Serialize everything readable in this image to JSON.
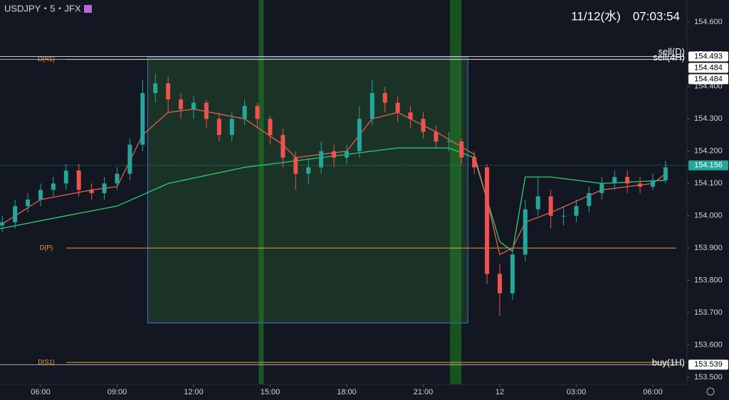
{
  "chart_data": {
    "type": "candlestick",
    "title": "USDJPY・5・JFX",
    "timestamp": "11/12(水)　07:03:54",
    "up_color": "#26a69a",
    "down_color": "#ef5350",
    "x": [
      -1.5,
      -1,
      -0.5,
      0,
      0.5,
      1,
      1.5,
      2,
      2.5,
      3,
      3.5,
      4,
      4.5,
      5,
      5.5,
      6,
      6.5,
      7,
      7.5,
      8,
      8.5,
      9,
      9.5,
      10,
      10.5,
      11,
      11.5,
      12,
      12.5,
      13,
      13.5,
      14,
      14.5,
      15,
      15.5,
      16,
      16.5,
      17,
      17.5,
      18,
      18.5,
      19,
      19.5,
      20,
      20.5,
      21,
      21.5,
      22,
      22.5,
      23,
      23.5,
      24,
      24.5
    ],
    "open": [
      153.97,
      153.98,
      154.03,
      154.05,
      154.08,
      154.1,
      154.14,
      154.08,
      154.07,
      154.1,
      154.13,
      154.22,
      154.38,
      154.41,
      154.36,
      154.33,
      154.35,
      154.3,
      154.25,
      154.3,
      154.34,
      154.3,
      154.25,
      154.18,
      154.13,
      154.15,
      154.2,
      154.18,
      154.2,
      154.3,
      154.38,
      154.35,
      154.32,
      154.3,
      154.26,
      154.23,
      154.23,
      154.18,
      154.15,
      153.82,
      153.76,
      153.88,
      154.02,
      154.06,
      154.0,
      154.0,
      154.03,
      154.07,
      154.1,
      154.12,
      154.1,
      154.09,
      154.11
    ],
    "high": [
      154.0,
      154.05,
      154.07,
      154.1,
      154.12,
      154.16,
      154.16,
      154.1,
      154.12,
      154.15,
      154.24,
      154.42,
      154.44,
      154.43,
      154.38,
      154.37,
      154.36,
      154.32,
      154.32,
      154.36,
      154.35,
      154.31,
      154.27,
      154.2,
      154.18,
      154.23,
      154.22,
      154.22,
      154.34,
      154.42,
      154.4,
      154.37,
      154.34,
      154.32,
      154.28,
      154.26,
      154.24,
      154.2,
      154.16,
      153.85,
      153.9,
      154.05,
      154.12,
      154.08,
      154.03,
      154.05,
      154.09,
      154.12,
      154.14,
      154.14,
      154.12,
      154.13,
      154.17
    ],
    "low": [
      153.95,
      153.96,
      154.01,
      154.03,
      154.06,
      154.08,
      154.06,
      154.05,
      154.05,
      154.08,
      154.11,
      154.2,
      154.35,
      154.32,
      154.3,
      154.3,
      154.27,
      154.23,
      154.23,
      154.28,
      154.27,
      154.22,
      154.15,
      154.08,
      154.1,
      154.13,
      154.15,
      154.16,
      154.18,
      154.28,
      154.32,
      154.29,
      154.27,
      154.24,
      154.21,
      154.2,
      154.16,
      154.13,
      153.79,
      153.69,
      153.74,
      153.86,
      154.0,
      153.96,
      153.97,
      153.98,
      154.01,
      154.05,
      154.08,
      154.07,
      154.07,
      154.08,
      154.1
    ],
    "close": [
      153.98,
      154.03,
      154.05,
      154.08,
      154.1,
      154.14,
      154.08,
      154.07,
      154.1,
      154.13,
      154.22,
      154.38,
      154.41,
      154.36,
      154.33,
      154.35,
      154.3,
      154.25,
      154.3,
      154.34,
      154.3,
      154.25,
      154.18,
      154.13,
      154.15,
      154.2,
      154.18,
      154.2,
      154.3,
      154.38,
      154.35,
      154.32,
      154.3,
      154.26,
      154.23,
      154.23,
      154.18,
      154.15,
      153.82,
      153.76,
      153.88,
      154.02,
      154.06,
      154.0,
      154.0,
      154.03,
      154.07,
      154.1,
      154.12,
      154.1,
      154.09,
      154.11,
      154.15
    ],
    "series": [
      {
        "color": "#2ecc71",
        "x": [
          -1.59,
          1,
          3,
          5,
          8,
          11,
          14,
          16,
          17,
          17.5,
          18,
          18.5,
          19,
          20,
          22,
          24.5
        ],
        "values": [
          153.96,
          154.0,
          154.03,
          154.1,
          154.15,
          154.18,
          154.21,
          154.21,
          154.18,
          154.05,
          153.92,
          153.89,
          154.12,
          154.12,
          154.1,
          154.11
        ]
      },
      {
        "color": "#e0604f",
        "x": [
          -1.59,
          0,
          2,
          3,
          4,
          5,
          6,
          8,
          9.5,
          10,
          11,
          12,
          13,
          14,
          15.5,
          17,
          17.5,
          18,
          18.5,
          19,
          20,
          22,
          24,
          24.5
        ],
        "values": [
          153.97,
          154.05,
          154.08,
          154.09,
          154.25,
          154.32,
          154.33,
          154.3,
          154.22,
          154.18,
          154.19,
          154.2,
          154.3,
          154.32,
          154.26,
          154.19,
          154.05,
          153.88,
          153.9,
          153.98,
          154.01,
          154.08,
          154.1,
          154.13
        ]
      }
    ],
    "levels": [
      {
        "name": "D(R1)",
        "value": 154.484,
        "color": "#f0a030"
      },
      {
        "name": "D(P)",
        "value": 153.9,
        "color": "#f0a030"
      },
      {
        "name": "D(S1)",
        "value": 153.546,
        "color": "#f0a030"
      }
    ],
    "orders": [
      {
        "name": "sell(D)",
        "value": 154.493
      },
      {
        "name": "sell(4H)",
        "value": 154.484
      },
      {
        "name": "buy(1H)",
        "value": 153.539
      }
    ],
    "last_price": 154.156,
    "price_labels": [
      {
        "value": 154.493,
        "label": "154.493"
      },
      {
        "value": 154.484,
        "label": "154.484"
      },
      {
        "value": 154.484,
        "label": "154.484"
      },
      {
        "value": 154.156,
        "label": "154.156"
      },
      {
        "value": 153.539,
        "label": "153.539"
      }
    ],
    "range_box": {
      "x": [
        4.2,
        16.75
      ],
      "y": [
        153.668,
        154.49
      ]
    },
    "highlights": [
      [
        8.55,
        8.75
      ],
      [
        16.05,
        16.5
      ]
    ],
    "xlim": [
      -1.59,
      25.34
    ],
    "xticks": [
      {
        "value": 0,
        "label": "06:00"
      },
      {
        "value": 3,
        "label": "09:00"
      },
      {
        "value": 6,
        "label": "12:00"
      },
      {
        "value": 9,
        "label": "15:00"
      },
      {
        "value": 12,
        "label": "18:00"
      },
      {
        "value": 15,
        "label": "21:00"
      },
      {
        "value": 18,
        "label": "12"
      },
      {
        "value": 21,
        "label": "03:00"
      },
      {
        "value": 24,
        "label": "06:00"
      }
    ],
    "ylim": [
      153.478,
      154.668
    ],
    "yticks": [
      {
        "value": 154.6,
        "label": "154.600"
      },
      {
        "value": 154.5,
        "label": "154.500"
      },
      {
        "value": 154.4,
        "label": "154.400"
      },
      {
        "value": 154.3,
        "label": "154.300"
      },
      {
        "value": 154.2,
        "label": "154.200"
      },
      {
        "value": 154.1,
        "label": "154.100"
      },
      {
        "value": 154.0,
        "label": "154.000"
      },
      {
        "value": 153.9,
        "label": "153.900"
      },
      {
        "value": 153.8,
        "label": "153.800"
      },
      {
        "value": 153.7,
        "label": "153.700"
      },
      {
        "value": 153.6,
        "label": "153.600"
      },
      {
        "value": 153.5,
        "label": "153.500"
      }
    ]
  }
}
